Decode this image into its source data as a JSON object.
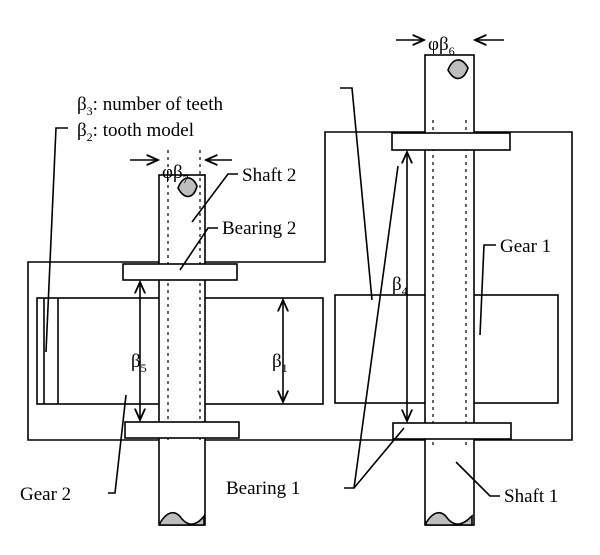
{
  "labels": {
    "teeth_sym": "β",
    "teeth_sub": "3",
    "teeth_text": ": number of teeth",
    "model_sym": "β",
    "model_sub": "2",
    "model_text": ": tooth model",
    "shaft2": "Shaft 2",
    "bearing2": "Bearing 2",
    "gear1": "Gear 1",
    "gear2": "Gear 2",
    "bearing1": "Bearing 1",
    "shaft1": "Shaft 1",
    "phi": "φ",
    "b7_sym": "β",
    "b7_sub": "7",
    "b6_sym": "β",
    "b6_sub": "6",
    "b4_sym": "β",
    "b4_sub": "4",
    "b5_sym": "β",
    "b5_sub": "5",
    "b1_sym": "β",
    "b1_sub": "1"
  },
  "colors": {
    "line": "#000000",
    "shaft_end_fill": "#bdbdbd",
    "background": "#ffffff"
  }
}
